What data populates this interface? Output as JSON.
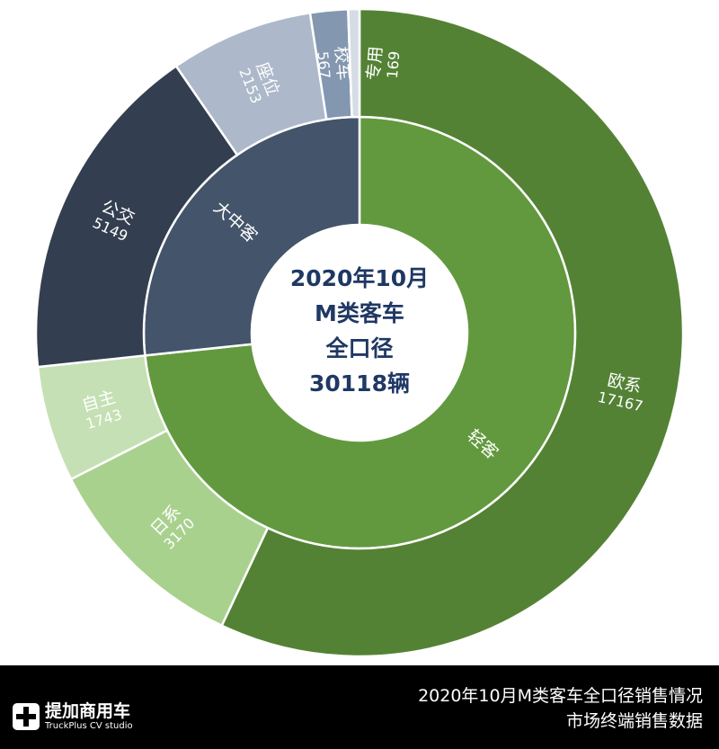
{
  "chart_data": {
    "type": "sunburst",
    "title_center": [
      "2020年10月",
      "M类客车",
      "全口径",
      "30118辆"
    ],
    "total": 30118,
    "inner": [
      {
        "name": "轻客",
        "value": 22080,
        "color": "#62993e"
      },
      {
        "name": "大中客",
        "value": 8038,
        "color": "#44546a"
      }
    ],
    "outer": [
      {
        "name": "欧系",
        "value": 17167,
        "parent": "轻客",
        "color": "#548235"
      },
      {
        "name": "日系",
        "value": 3170,
        "parent": "轻客",
        "color": "#a9d18e"
      },
      {
        "name": "自主",
        "value": 1743,
        "parent": "轻客",
        "color": "#c5e0b4"
      },
      {
        "name": "公交",
        "value": 5149,
        "parent": "大中客",
        "color": "#333f50"
      },
      {
        "name": "座位",
        "value": 2153,
        "parent": "大中客",
        "color": "#adb9ca"
      },
      {
        "name": "校车",
        "value": 567,
        "parent": "大中客",
        "color": "#8497b0"
      },
      {
        "name": "专用",
        "value": 169,
        "parent": "大中客",
        "color": "#d6dce5"
      }
    ]
  },
  "footer": {
    "logo_cn": "提加商用车",
    "logo_en": "TruckPlus CV studio",
    "title_line1": "2020年10月M类客车全口径销售情况",
    "title_line2": "市场终端销售数据"
  }
}
